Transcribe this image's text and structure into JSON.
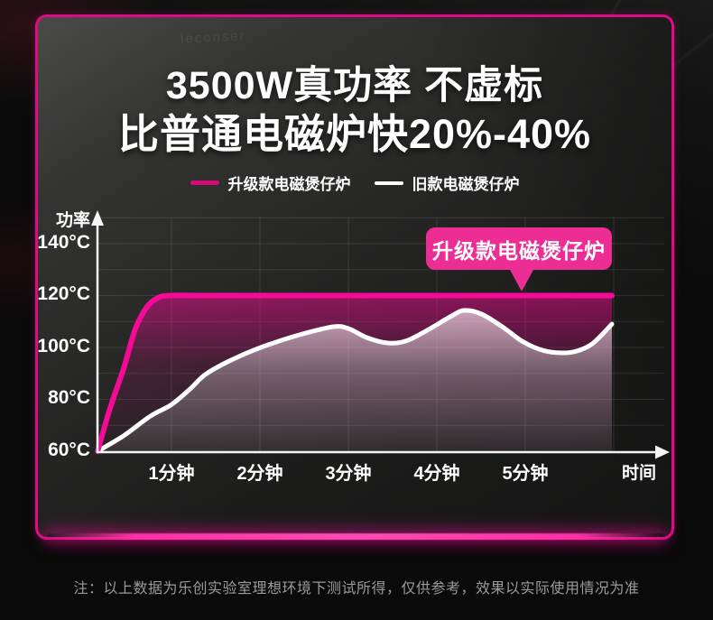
{
  "title": {
    "line1": "3500W真功率 不虚标",
    "line2": "比普通电磁炉快20%-40%"
  },
  "watermark": "leconser",
  "legend": {
    "items": [
      {
        "label": "升级款电磁煲仔炉",
        "color": "#d40a78"
      },
      {
        "label": "旧款电磁煲仔炉",
        "color": "#ffffff"
      }
    ]
  },
  "callout": {
    "label": "升级款电磁煲仔炉",
    "color": "#ec2e94"
  },
  "note": "注：以上数据为乐创实验室理想环境下测试所得，仅供参考，效果以实际使用情况为准",
  "colors": {
    "accent": "#f50a96",
    "panel_border": "#e00b84",
    "axis": "#f5f5f5",
    "grid": "rgba(255,255,255,0.10)",
    "note_text": "#9b9b9b"
  },
  "chart_data": {
    "type": "line",
    "title": "",
    "xlabel": "时间",
    "ylabel": "功率",
    "x_ticks": [
      "1分钟",
      "2分钟",
      "3分钟",
      "4分钟",
      "5分钟"
    ],
    "y_ticks": [
      "140°C",
      "120°C",
      "100°C",
      "80°C",
      "60°C"
    ],
    "y_tick_values": [
      140,
      120,
      100,
      80,
      60
    ],
    "ylim": [
      60,
      150
    ],
    "xlim_minutes": [
      0,
      6.2
    ],
    "grid": true,
    "legend_position": "top",
    "series": [
      {
        "name": "升级款电磁煲仔炉",
        "color": "#f50a96",
        "points_min_degC": [
          [
            0.165,
            60
          ],
          [
            0.3,
            76
          ],
          [
            0.46,
            92
          ],
          [
            0.59,
            107
          ],
          [
            0.72,
            115.5
          ],
          [
            0.85,
            119.2
          ],
          [
            1.0,
            120
          ],
          [
            1.3,
            120
          ],
          [
            2,
            120
          ],
          [
            3,
            120
          ],
          [
            4,
            120
          ],
          [
            5,
            120
          ],
          [
            5.98,
            120
          ]
        ]
      },
      {
        "name": "旧款电磁煲仔炉",
        "color": "#ffffff",
        "points_min_degC": [
          [
            0.165,
            60
          ],
          [
            0.46,
            66
          ],
          [
            0.76,
            73.5
          ],
          [
            1.0,
            78
          ],
          [
            1.21,
            84
          ],
          [
            1.4,
            90
          ],
          [
            1.76,
            96.5
          ],
          [
            2.09,
            101
          ],
          [
            2.46,
            105
          ],
          [
            2.83,
            108
          ],
          [
            3.0,
            107.3
          ],
          [
            3.21,
            103.8
          ],
          [
            3.45,
            101.7
          ],
          [
            3.66,
            102.6
          ],
          [
            3.91,
            107
          ],
          [
            4.16,
            112
          ],
          [
            4.31,
            114.3
          ],
          [
            4.51,
            112.8
          ],
          [
            4.76,
            107.5
          ],
          [
            4.96,
            102.5
          ],
          [
            5.16,
            99.3
          ],
          [
            5.35,
            98
          ],
          [
            5.56,
            98.4
          ],
          [
            5.76,
            101.5
          ],
          [
            5.98,
            109
          ]
        ]
      }
    ],
    "annotation": {
      "text": "升级款电磁煲仔炉",
      "points_to_series": "升级款电磁煲仔炉"
    }
  }
}
